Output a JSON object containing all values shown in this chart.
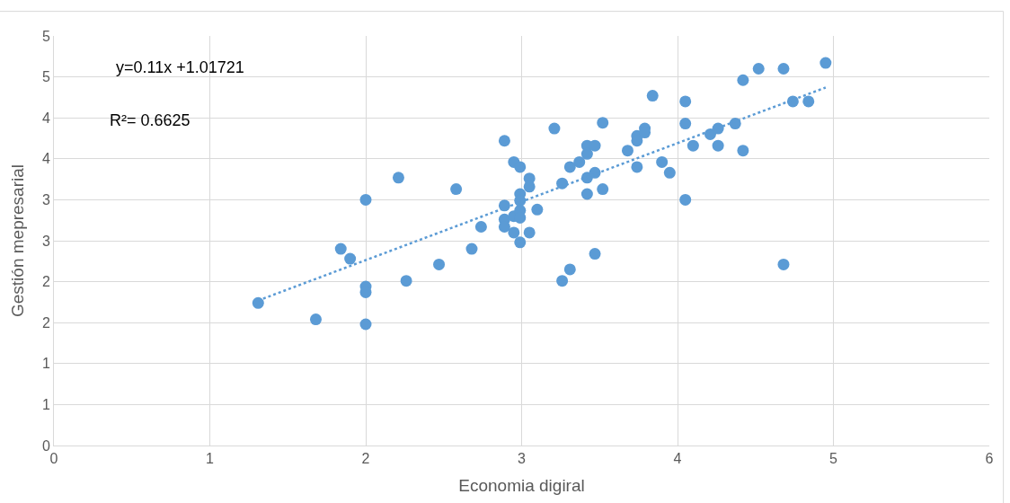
{
  "chart_data": {
    "type": "scatter",
    "xlabel": "Economia digiral",
    "ylabel": "Gestión mepresarial",
    "annotations": [
      "y=0.11x +1.01721",
      "R²= 0.6625"
    ],
    "xlim": [
      0,
      6
    ],
    "xticks": [
      0,
      1,
      2,
      3,
      4,
      5,
      6
    ],
    "ylim": [
      0,
      5
    ],
    "yticks": [
      0,
      {
        "value": 0.5,
        "label": "1"
      },
      1,
      {
        "value": 1.5,
        "label": "2"
      },
      2,
      {
        "value": 2.5,
        "label": "3"
      },
      3,
      {
        "value": 3.5,
        "label": "4"
      },
      4,
      {
        "value": 4.5,
        "label": "5"
      },
      5
    ],
    "grid": true,
    "series": [
      {
        "color": "#5b9bd5",
        "marker": "circle",
        "x": [
          1.31,
          1.68,
          1.84,
          1.9,
          2.0,
          2.0,
          2.0,
          2.0,
          2.21,
          2.26,
          2.47,
          2.58,
          2.68,
          2.74,
          2.89,
          2.89,
          2.89,
          2.89,
          2.95,
          2.95,
          2.95,
          2.99,
          2.99,
          2.99,
          2.99,
          2.99,
          2.99,
          3.05,
          3.05,
          3.05,
          3.1,
          3.21,
          3.26,
          3.26,
          3.31,
          3.31,
          3.37,
          3.42,
          3.42,
          3.42,
          3.42,
          3.47,
          3.47,
          3.47,
          3.52,
          3.52,
          3.68,
          3.74,
          3.74,
          3.74,
          3.79,
          3.79,
          3.84,
          3.9,
          3.95,
          4.05,
          4.05,
          4.05,
          4.1,
          4.21,
          4.26,
          4.26,
          4.37,
          4.42,
          4.42,
          4.52,
          4.68,
          4.68,
          4.74,
          4.84,
          4.95
        ],
        "values": [
          1.74,
          1.54,
          2.4,
          2.28,
          3.0,
          1.94,
          1.87,
          1.48,
          3.27,
          2.01,
          2.21,
          3.13,
          2.4,
          2.67,
          2.93,
          3.72,
          2.76,
          2.67,
          3.46,
          2.6,
          2.8,
          3.4,
          3.07,
          2.99,
          2.87,
          2.78,
          2.48,
          3.26,
          3.16,
          2.6,
          2.88,
          3.87,
          3.2,
          2.01,
          3.4,
          2.15,
          3.46,
          3.66,
          3.56,
          3.27,
          3.07,
          3.66,
          3.33,
          2.34,
          3.94,
          3.13,
          3.6,
          3.78,
          3.72,
          3.4,
          3.87,
          3.82,
          4.27,
          3.46,
          3.33,
          4.2,
          3.93,
          3.0,
          3.66,
          3.8,
          3.87,
          3.66,
          3.93,
          4.46,
          3.6,
          4.6,
          4.6,
          2.21,
          4.2,
          4.2,
          4.67
        ]
      },
      {
        "type": "line",
        "color": "#5b9bd5",
        "line_style": "dotted",
        "marker": "none",
        "x": [
          1.31,
          4.95
        ],
        "values": [
          1.77,
          4.37
        ]
      }
    ]
  }
}
